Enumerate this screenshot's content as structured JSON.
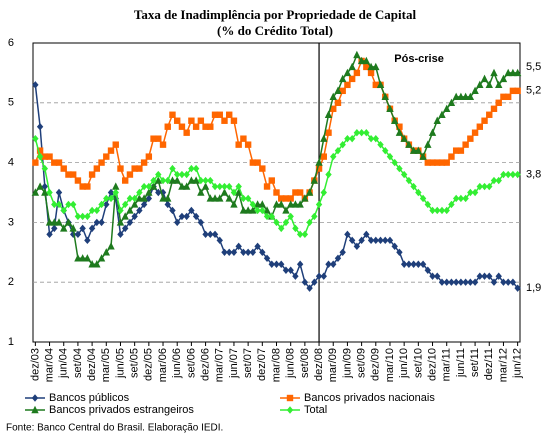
{
  "chart_data": {
    "type": "line",
    "title": "Taxa de Inadimplência por Propriedade de Capital",
    "subtitle": "(% do Crédito Total)",
    "source": "Fonte: Banco Central do Brasil. Elaboração IEDI.",
    "annotation": {
      "text": "Pós-crise",
      "x": "dez/08"
    },
    "categories": [
      "dez/03",
      null,
      null,
      "mar/04",
      null,
      null,
      "jun/04",
      null,
      null,
      "set/04",
      null,
      null,
      "dez/04",
      null,
      null,
      "mar/05",
      null,
      null,
      "jun/05",
      null,
      null,
      "set/05",
      null,
      null,
      "dez/05",
      null,
      null,
      "mar/06",
      null,
      null,
      "jun/06",
      null,
      null,
      "set/06",
      null,
      null,
      "dez/06",
      null,
      null,
      "mar/07",
      null,
      null,
      "jun/07",
      null,
      null,
      "set/07",
      null,
      null,
      "dez/07",
      null,
      null,
      "mar/08",
      null,
      null,
      "jun/08",
      null,
      null,
      "set/08",
      null,
      null,
      "dez/08",
      null,
      null,
      "mar/09",
      null,
      null,
      "jun/09",
      null,
      null,
      "set/09",
      null,
      null,
      "dez/09",
      null,
      null,
      "mar/10",
      null,
      null,
      "jun/10",
      null,
      null,
      "set/10",
      null,
      null,
      "dez/10",
      null,
      null,
      "mar/11",
      null,
      null,
      "jun/11",
      null,
      null,
      "set/11",
      null,
      null,
      "dez/11",
      null,
      null,
      "mar/12",
      null,
      null,
      "jun/12"
    ],
    "ylim": [
      1,
      6
    ],
    "yticks": [
      1,
      2,
      3,
      4,
      5,
      6
    ],
    "grid": true,
    "legend": "bottom",
    "series": [
      {
        "name": "Bancos públicos",
        "color": "#1f3f7a",
        "marker": "diamond",
        "values": [
          5.3,
          4.6,
          3.6,
          2.8,
          2.9,
          3.5,
          3.2,
          3.0,
          2.8,
          2.8,
          2.9,
          2.7,
          2.9,
          3.0,
          3.0,
          3.3,
          3.5,
          3.4,
          2.8,
          2.9,
          3.0,
          3.1,
          3.2,
          3.3,
          3.4,
          3.6,
          3.5,
          3.5,
          3.3,
          3.2,
          3.0,
          3.1,
          3.1,
          3.2,
          3.1,
          3.0,
          2.8,
          2.8,
          2.8,
          2.7,
          2.5,
          2.5,
          2.5,
          2.6,
          2.5,
          2.5,
          2.5,
          2.6,
          2.5,
          2.4,
          2.3,
          2.3,
          2.3,
          2.2,
          2.2,
          2.1,
          2.3,
          2.0,
          1.9,
          2.0,
          2.1,
          2.1,
          2.3,
          2.3,
          2.4,
          2.5,
          2.8,
          2.7,
          2.6,
          2.7,
          2.8,
          2.7,
          2.7,
          2.7,
          2.7,
          2.7,
          2.6,
          2.5,
          2.3,
          2.3,
          2.3,
          2.3,
          2.3,
          2.2,
          2.1,
          2.1,
          2.0,
          2.0,
          2.0,
          2.0,
          2.0,
          2.0,
          2.0,
          2.0,
          2.1,
          2.1,
          2.1,
          2.0,
          2.1,
          2.0,
          2.0,
          2.0,
          1.9
        ],
        "value_labels": [
          null,
          null,
          null,
          null,
          null,
          null,
          null,
          null,
          null,
          null,
          null,
          null,
          null,
          null,
          null,
          null,
          null,
          null,
          null,
          null,
          null,
          null,
          null,
          null,
          null,
          null,
          null,
          null,
          null,
          null,
          null,
          null,
          null,
          null,
          null,
          null,
          null,
          null,
          null,
          null,
          null,
          null,
          null,
          null,
          null,
          null,
          null,
          null,
          null,
          null,
          null,
          null,
          null,
          null,
          null,
          null,
          null,
          null,
          null,
          null,
          null,
          null,
          null,
          null,
          null,
          null,
          null,
          null,
          null,
          null,
          null,
          null,
          null,
          null,
          null,
          null,
          null,
          null,
          null,
          null,
          null,
          null,
          null,
          null,
          null,
          null,
          null,
          null,
          null,
          null,
          null,
          null,
          null,
          null,
          null,
          null,
          null,
          null,
          null,
          null,
          null,
          null,
          "1,9"
        ]
      },
      {
        "name": "Bancos privados nacionais",
        "color": "#ff6600",
        "marker": "square",
        "values": [
          4.0,
          4.2,
          4.1,
          4.1,
          4.0,
          4.0,
          3.9,
          3.8,
          3.8,
          3.7,
          3.6,
          3.6,
          3.8,
          3.9,
          4.0,
          4.1,
          4.2,
          4.3,
          3.9,
          3.7,
          3.8,
          3.9,
          3.9,
          4.0,
          4.1,
          4.4,
          4.4,
          4.3,
          4.6,
          4.8,
          4.7,
          4.6,
          4.5,
          4.7,
          4.6,
          4.7,
          4.6,
          4.6,
          4.8,
          4.8,
          4.7,
          4.8,
          4.7,
          4.3,
          4.4,
          4.3,
          4.0,
          4.0,
          3.9,
          3.6,
          3.7,
          3.5,
          3.4,
          3.4,
          3.4,
          3.5,
          3.5,
          3.4,
          3.5,
          3.7,
          3.9,
          4.1,
          4.5,
          4.9,
          5.0,
          5.2,
          5.3,
          5.4,
          5.5,
          5.7,
          5.6,
          5.5,
          5.3,
          5.3,
          5.1,
          4.9,
          4.7,
          4.6,
          4.4,
          4.3,
          4.2,
          4.2,
          4.1,
          4.0,
          4.0,
          4.0,
          4.0,
          4.0,
          4.1,
          4.2,
          4.2,
          4.3,
          4.4,
          4.5,
          4.6,
          4.7,
          4.8,
          4.9,
          5.0,
          5.1,
          5.1,
          5.2,
          5.2
        ],
        "value_labels": [
          null,
          null,
          null,
          null,
          null,
          null,
          null,
          null,
          null,
          null,
          null,
          null,
          null,
          null,
          null,
          null,
          null,
          null,
          null,
          null,
          null,
          null,
          null,
          null,
          null,
          null,
          null,
          null,
          null,
          null,
          null,
          null,
          null,
          null,
          null,
          null,
          null,
          null,
          null,
          null,
          null,
          null,
          null,
          null,
          null,
          null,
          null,
          null,
          null,
          null,
          null,
          null,
          null,
          null,
          null,
          null,
          null,
          null,
          null,
          null,
          null,
          null,
          null,
          null,
          null,
          null,
          null,
          null,
          null,
          null,
          null,
          null,
          null,
          null,
          null,
          null,
          null,
          null,
          null,
          null,
          null,
          null,
          null,
          null,
          null,
          null,
          null,
          null,
          null,
          null,
          null,
          null,
          null,
          null,
          null,
          null,
          null,
          null,
          null,
          null,
          null,
          null,
          "5,2"
        ]
      },
      {
        "name": "Bancos privados estrangeiros",
        "color": "#1e7a1e",
        "marker": "triangle",
        "values": [
          3.5,
          3.6,
          3.5,
          3.0,
          3.0,
          3.0,
          2.9,
          3.0,
          2.9,
          2.4,
          2.4,
          2.4,
          2.3,
          2.3,
          2.4,
          2.5,
          2.6,
          3.6,
          3.0,
          3.1,
          3.2,
          3.3,
          3.4,
          3.4,
          3.5,
          3.6,
          3.7,
          3.4,
          3.4,
          3.7,
          3.7,
          3.6,
          3.6,
          3.7,
          3.7,
          3.5,
          3.6,
          3.4,
          3.4,
          3.4,
          3.5,
          3.4,
          3.3,
          3.5,
          3.2,
          3.2,
          3.2,
          3.3,
          3.3,
          3.2,
          3.1,
          3.3,
          3.3,
          3.2,
          3.3,
          3.3,
          3.3,
          3.4,
          3.5,
          3.7,
          4.0,
          4.4,
          4.8,
          5.1,
          5.2,
          5.4,
          5.5,
          5.6,
          5.8,
          5.7,
          5.7,
          5.6,
          5.6,
          5.3,
          5.1,
          4.9,
          4.7,
          4.5,
          4.4,
          4.3,
          4.2,
          4.2,
          4.1,
          4.3,
          4.5,
          4.7,
          4.8,
          4.9,
          5.0,
          5.1,
          5.1,
          5.1,
          5.1,
          5.2,
          5.3,
          5.4,
          5.3,
          5.5,
          5.3,
          5.4,
          5.5,
          5.5,
          5.5
        ],
        "value_labels": [
          null,
          null,
          null,
          null,
          null,
          null,
          null,
          null,
          null,
          null,
          null,
          null,
          null,
          null,
          null,
          null,
          null,
          null,
          null,
          null,
          null,
          null,
          null,
          null,
          null,
          null,
          null,
          null,
          null,
          null,
          null,
          null,
          null,
          null,
          null,
          null,
          null,
          null,
          null,
          null,
          null,
          null,
          null,
          null,
          null,
          null,
          null,
          null,
          null,
          null,
          null,
          null,
          null,
          null,
          null,
          null,
          null,
          null,
          null,
          null,
          null,
          null,
          null,
          null,
          null,
          null,
          null,
          null,
          null,
          null,
          null,
          null,
          null,
          null,
          null,
          null,
          null,
          null,
          null,
          null,
          null,
          null,
          null,
          null,
          null,
          null,
          null,
          null,
          null,
          null,
          null,
          null,
          null,
          null,
          null,
          null,
          null,
          null,
          null,
          null,
          null,
          null,
          "5,5"
        ]
      },
      {
        "name": "Total",
        "color": "#33ee33",
        "marker": "diamond",
        "values": [
          4.4,
          4.1,
          3.9,
          3.5,
          3.3,
          3.3,
          3.2,
          3.3,
          3.3,
          3.1,
          3.1,
          3.1,
          3.2,
          3.2,
          3.3,
          3.4,
          3.4,
          3.5,
          3.2,
          3.3,
          3.4,
          3.4,
          3.5,
          3.6,
          3.6,
          3.7,
          3.8,
          3.7,
          3.7,
          3.9,
          3.8,
          3.8,
          3.8,
          3.9,
          3.9,
          3.7,
          3.7,
          3.7,
          3.6,
          3.6,
          3.6,
          3.6,
          3.5,
          3.6,
          3.4,
          3.4,
          3.3,
          3.2,
          3.2,
          3.1,
          3.1,
          3.0,
          2.9,
          3.0,
          3.1,
          2.9,
          2.8,
          2.8,
          3.0,
          3.1,
          3.3,
          3.5,
          3.8,
          4.1,
          4.2,
          4.3,
          4.4,
          4.4,
          4.5,
          4.5,
          4.5,
          4.4,
          4.4,
          4.3,
          4.2,
          4.1,
          4.0,
          3.9,
          3.8,
          3.7,
          3.6,
          3.5,
          3.4,
          3.3,
          3.2,
          3.2,
          3.2,
          3.2,
          3.3,
          3.4,
          3.4,
          3.4,
          3.5,
          3.5,
          3.6,
          3.6,
          3.6,
          3.7,
          3.7,
          3.8,
          3.8,
          3.8,
          3.8
        ],
        "value_labels": [
          null,
          null,
          null,
          null,
          null,
          null,
          null,
          null,
          null,
          null,
          null,
          null,
          null,
          null,
          null,
          null,
          null,
          null,
          null,
          null,
          null,
          null,
          null,
          null,
          null,
          null,
          null,
          null,
          null,
          null,
          null,
          null,
          null,
          null,
          null,
          null,
          null,
          null,
          null,
          null,
          null,
          null,
          null,
          null,
          null,
          null,
          null,
          null,
          null,
          null,
          null,
          null,
          null,
          null,
          null,
          null,
          null,
          null,
          null,
          null,
          null,
          null,
          null,
          null,
          null,
          null,
          null,
          null,
          null,
          null,
          null,
          null,
          null,
          null,
          null,
          null,
          null,
          null,
          null,
          null,
          null,
          null,
          null,
          null,
          null,
          null,
          null,
          null,
          null,
          null,
          null,
          null,
          null,
          null,
          null,
          null,
          null,
          null,
          null,
          null,
          null,
          null,
          "3,8"
        ]
      }
    ]
  }
}
